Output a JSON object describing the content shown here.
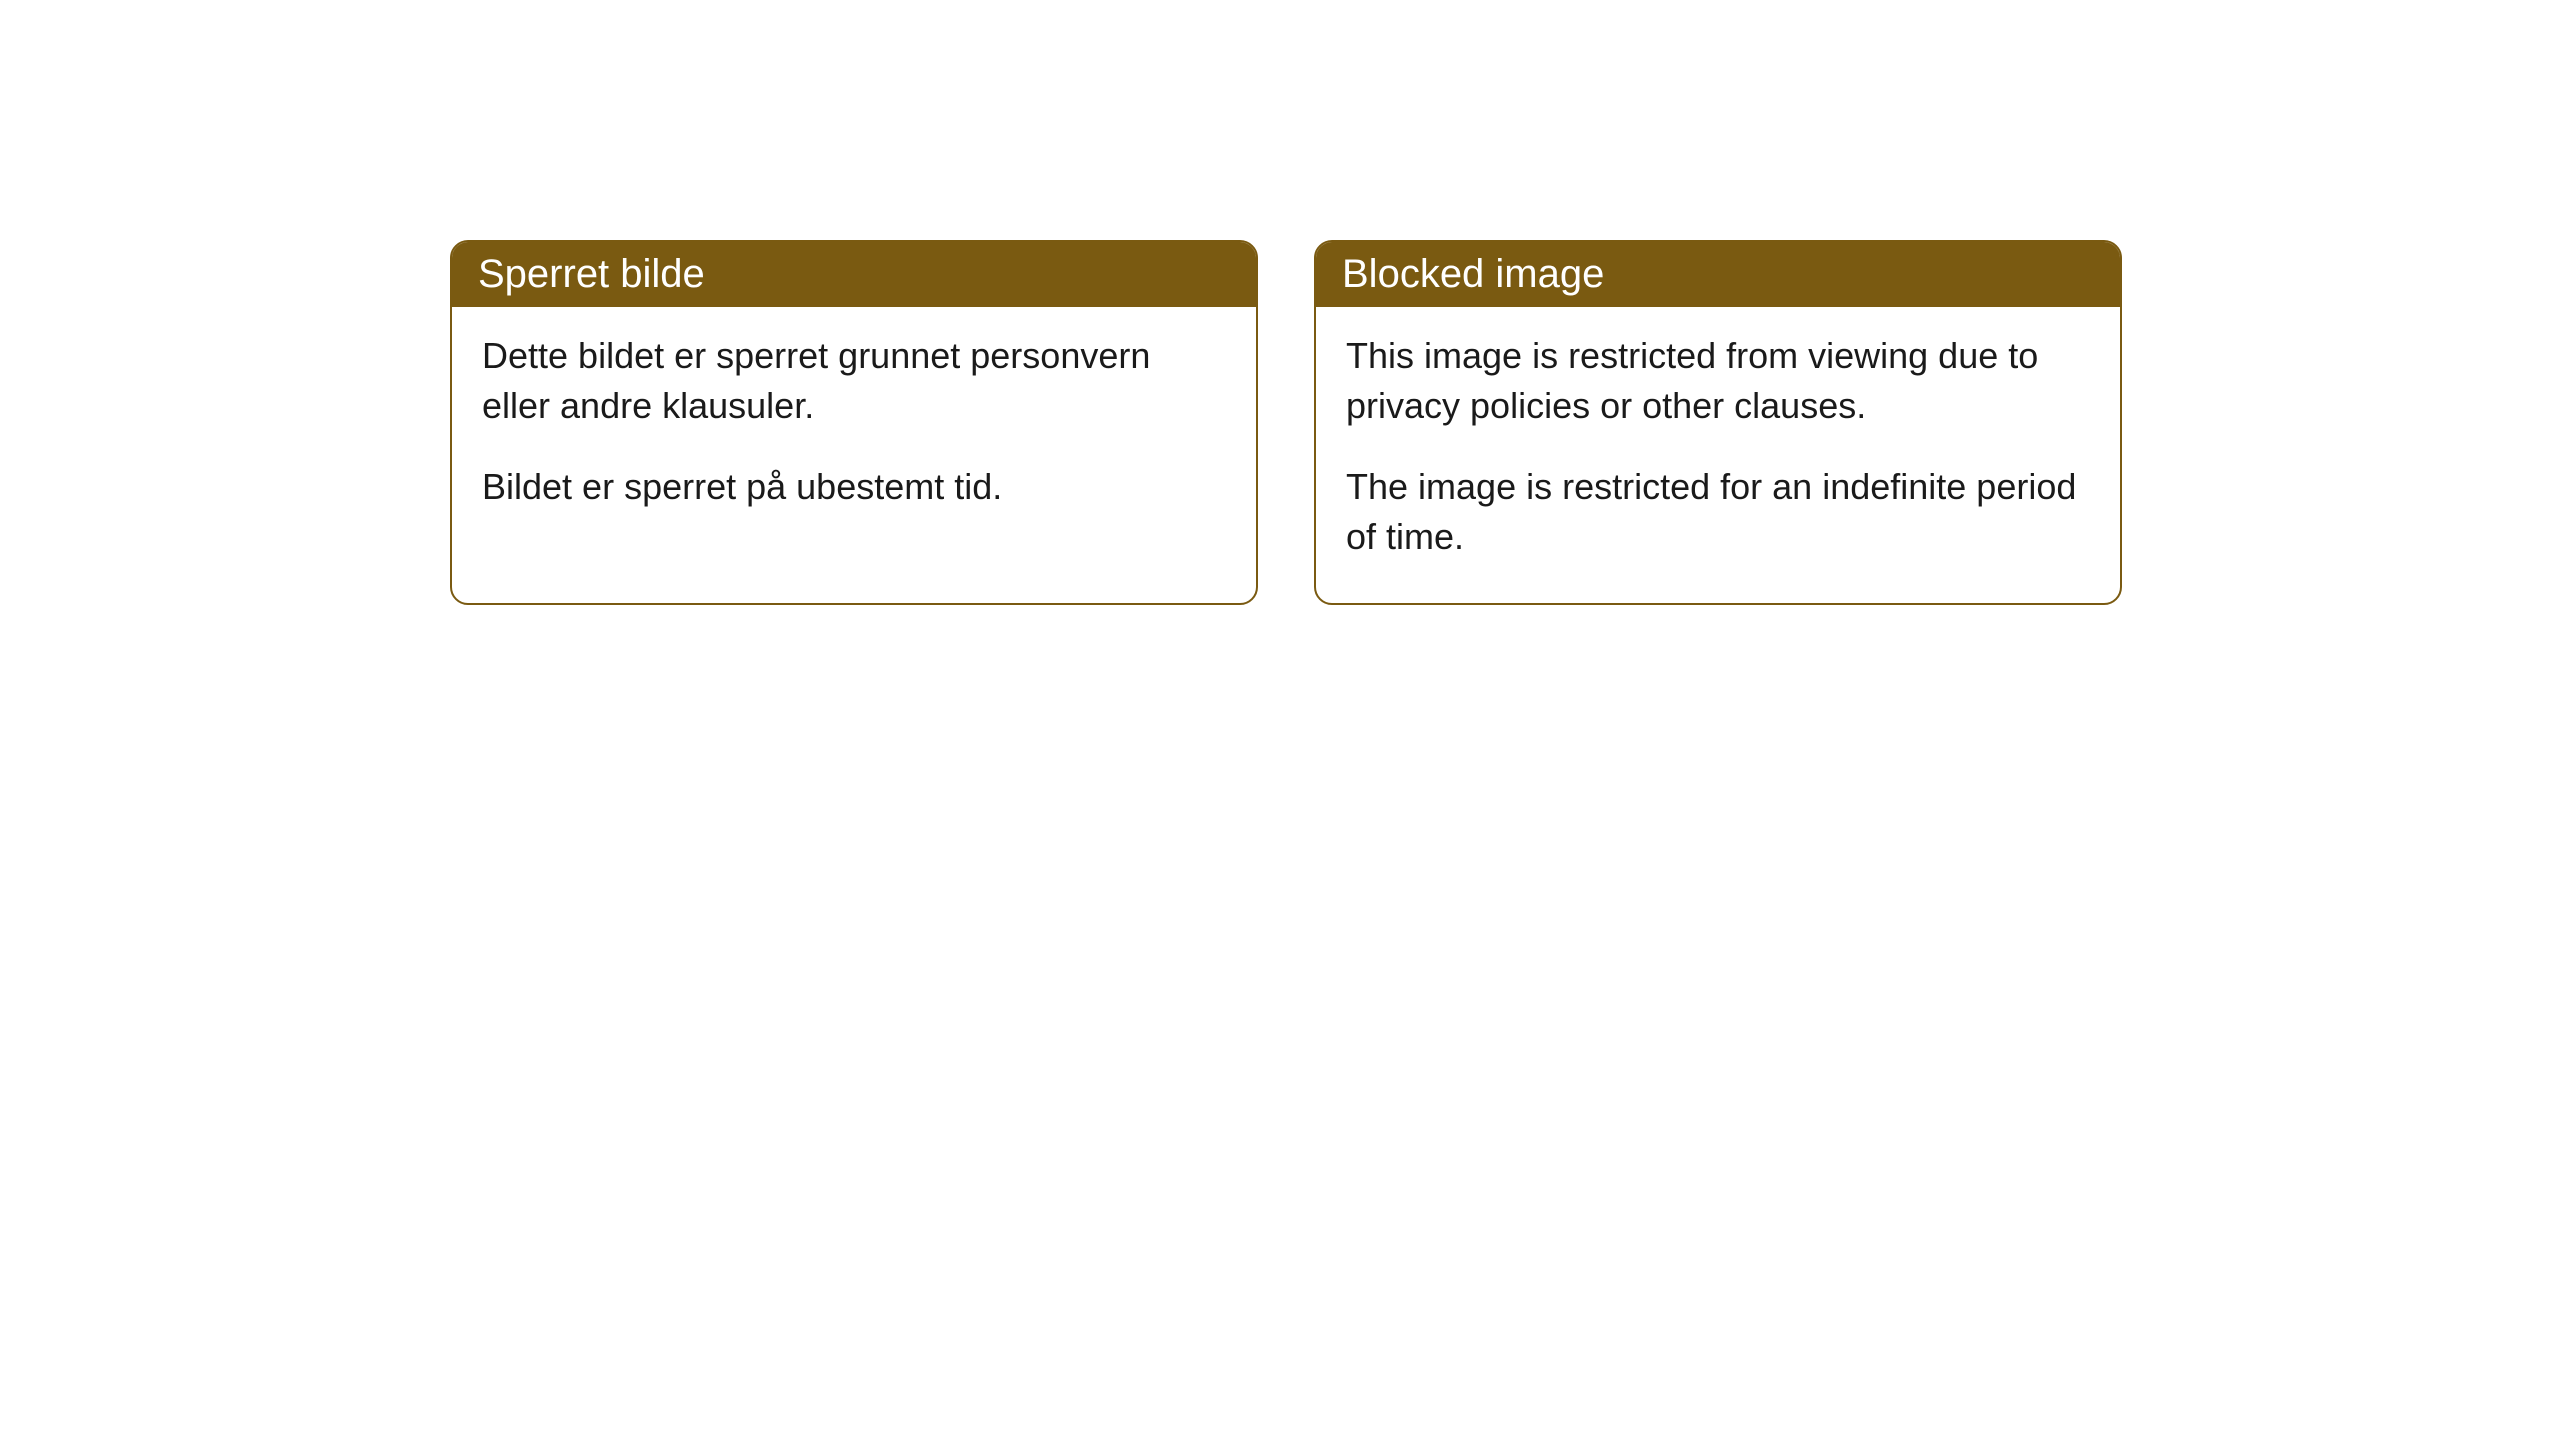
{
  "cards": [
    {
      "title": "Sperret bilde",
      "paragraph1": "Dette bildet er sperret grunnet personvern eller andre klausuler.",
      "paragraph2": "Bildet er sperret på ubestemt tid."
    },
    {
      "title": "Blocked image",
      "paragraph1": "This image is restricted from viewing due to privacy policies or other clauses.",
      "paragraph2": "The image is restricted for an indefinite period of time."
    }
  ],
  "style": {
    "header_bg_color": "#7a5a11",
    "header_text_color": "#ffffff",
    "border_color": "#7a5a11",
    "body_bg_color": "#ffffff",
    "body_text_color": "#1a1a1a",
    "border_radius": 18,
    "title_fontsize": 40,
    "body_fontsize": 36
  }
}
